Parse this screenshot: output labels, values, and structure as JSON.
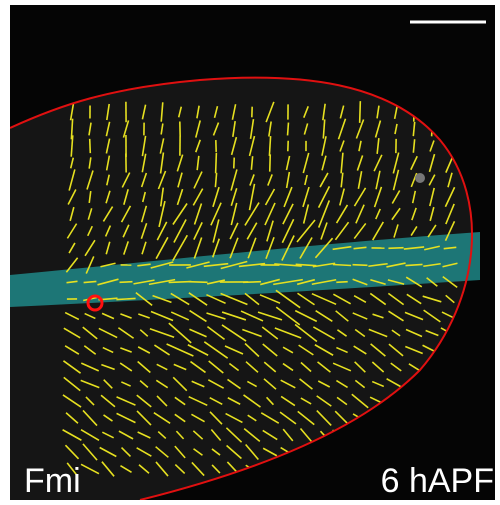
{
  "image": {
    "label": "Fmi",
    "stage": "6 hAPF"
  }
}
